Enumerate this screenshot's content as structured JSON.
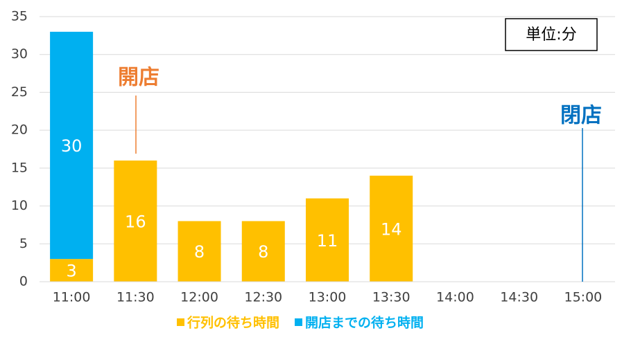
{
  "chart_data": {
    "type": "stacked_bar",
    "categories": [
      "11:00",
      "11:30",
      "12:00",
      "12:30",
      "13:00",
      "13:30",
      "14:00",
      "14:30",
      "15:00"
    ],
    "series": [
      {
        "name": "行列の待ち時間",
        "color": "#ffc000",
        "values": [
          3,
          16,
          8,
          8,
          11,
          14,
          0,
          0,
          0
        ]
      },
      {
        "name": "開店までの待ち時間",
        "color": "#00b0f0",
        "values": [
          30,
          null,
          null,
          null,
          null,
          null,
          null,
          null,
          null
        ]
      }
    ],
    "ylim": [
      0,
      35
    ],
    "yticks": [
      0,
      5,
      10,
      15,
      20,
      25,
      30,
      35
    ],
    "grid": true,
    "legend": "bottom",
    "unit_box": "単位:分",
    "annotations": [
      {
        "text": "開店",
        "color": "#ed7d31"
      },
      {
        "text": "閉店",
        "color": "#0070c0"
      }
    ]
  }
}
